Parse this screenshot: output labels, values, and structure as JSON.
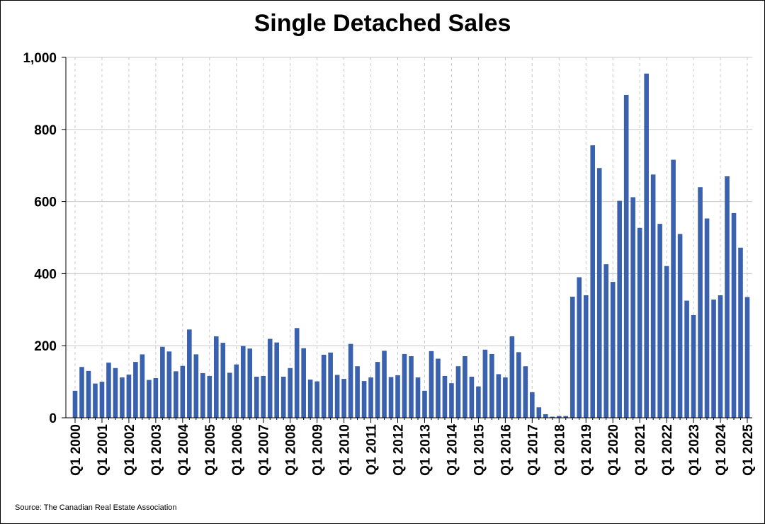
{
  "chart_data": {
    "type": "bar",
    "title": "Single Detached Sales",
    "xlabel": "",
    "ylabel": "",
    "ylim": [
      0,
      1000
    ],
    "yticks": [
      0,
      200,
      400,
      600,
      800,
      1000
    ],
    "ytick_labels": [
      "0",
      "200",
      "400",
      "600",
      "800",
      "1,000"
    ],
    "xtick_labels": [
      "Q1 2000",
      "Q1 2001",
      "Q1 2002",
      "Q1 2003",
      "Q1 2004",
      "Q1 2005",
      "Q1 2006",
      "Q1 2007",
      "Q1 2008",
      "Q1 2009",
      "Q1 2010",
      "Q1 2011",
      "Q1 2012",
      "Q1 2013",
      "Q1 2014",
      "Q1 2015",
      "Q1 2016",
      "Q1 2017",
      "Q1 2018",
      "Q1 2019",
      "Q1 2020",
      "Q1 2021",
      "Q1 2022",
      "Q1 2023",
      "Q1 2024",
      "Q1 2025"
    ],
    "grid": true,
    "bar_color": "#3a61ae",
    "series": [
      {
        "name": "Single Detached Sales",
        "start": "Q1 2000",
        "frequency": "quarterly",
        "values": [
          75,
          141,
          130,
          95,
          100,
          153,
          138,
          112,
          120,
          155,
          176,
          105,
          110,
          197,
          184,
          129,
          144,
          245,
          176,
          124,
          116,
          226,
          208,
          125,
          148,
          199,
          192,
          114,
          116,
          219,
          209,
          114,
          138,
          249,
          193,
          106,
          101,
          175,
          181,
          119,
          108,
          205,
          143,
          102,
          112,
          155,
          186,
          113,
          118,
          177,
          171,
          112,
          75,
          185,
          164,
          116,
          96,
          143,
          171,
          114,
          87,
          189,
          177,
          121,
          112,
          226,
          182,
          143,
          71,
          29,
          10,
          3,
          5,
          5,
          336,
          390,
          340,
          756,
          693,
          426,
          377,
          602,
          896,
          612,
          527,
          955,
          675,
          538,
          421,
          716,
          510,
          325,
          285,
          640,
          553,
          328,
          340,
          670,
          568,
          472,
          335
        ]
      }
    ]
  },
  "source": "Source: The Canadian Real Estate Association"
}
